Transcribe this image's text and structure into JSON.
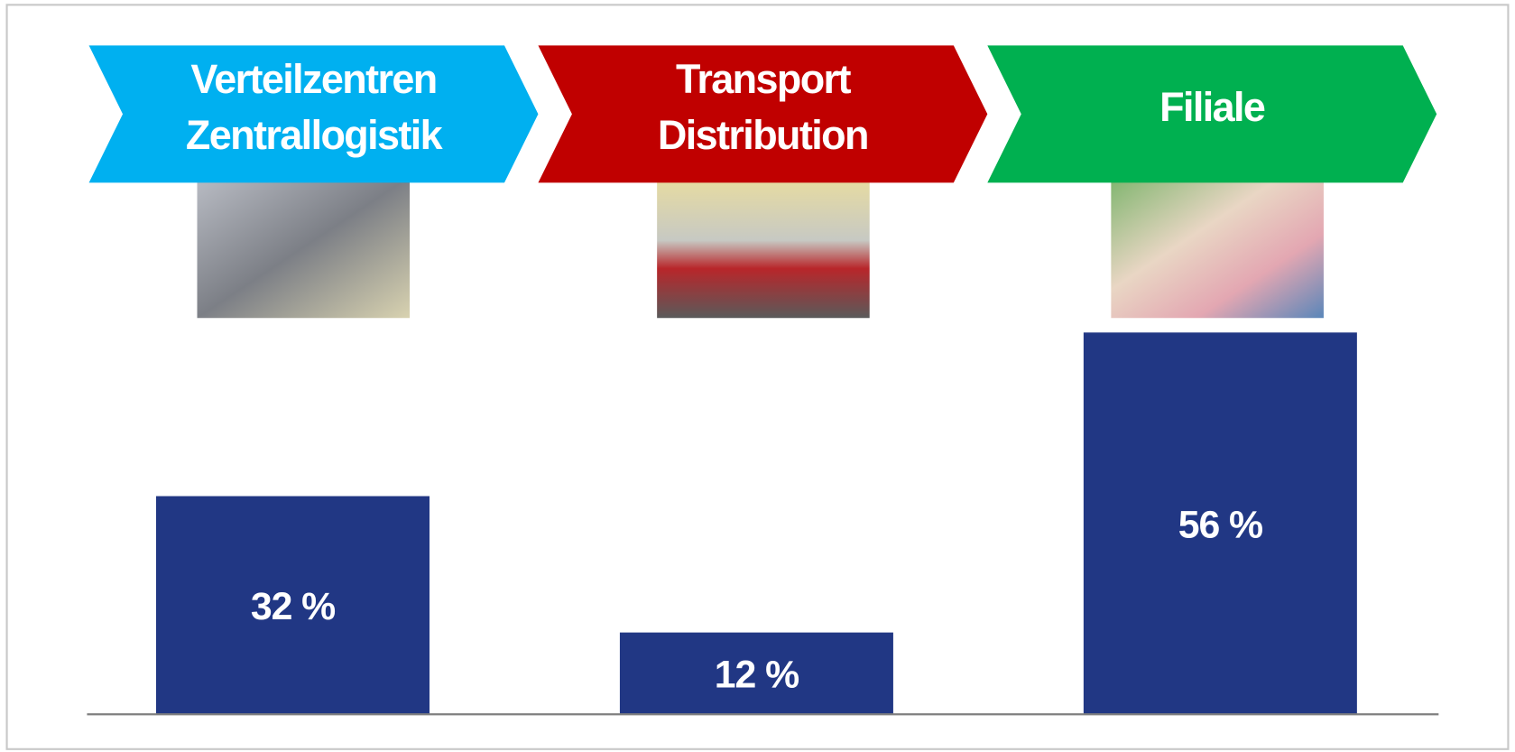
{
  "chart_data": {
    "type": "bar",
    "categories": [
      [
        "Verteilzentren",
        "Zentrallogistik"
      ],
      [
        "Transport",
        "Distribution"
      ],
      [
        "Filiale"
      ]
    ],
    "category_colors": [
      "#00b0f0",
      "#c00000",
      "#00b050"
    ],
    "values": [
      32,
      12,
      56
    ],
    "value_labels": [
      "32 %",
      "12 %",
      "56 %"
    ],
    "color": "#213784"
  }
}
